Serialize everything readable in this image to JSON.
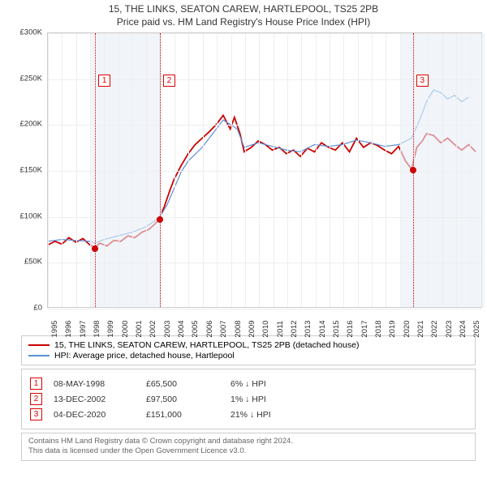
{
  "title_line1": "15, THE LINKS, SEATON CAREW, HARTLEPOOL, TS25 2PB",
  "title_line2": "Price paid vs. HM Land Registry's House Price Index (HPI)",
  "chart": {
    "type": "line",
    "x_range": [
      1995,
      2025.9
    ],
    "x_ticks": [
      1995,
      1996,
      1997,
      1998,
      1999,
      2000,
      2001,
      2002,
      2003,
      2004,
      2005,
      2006,
      2007,
      2008,
      2009,
      2010,
      2011,
      2012,
      2013,
      2014,
      2015,
      2016,
      2017,
      2018,
      2019,
      2020,
      2021,
      2022,
      2023,
      2024,
      2025
    ],
    "y_range": [
      0,
      300000
    ],
    "y_ticks": [
      0,
      50000,
      100000,
      150000,
      200000,
      250000,
      300000
    ],
    "y_tick_labels": [
      "£0",
      "£50K",
      "£100K",
      "£150K",
      "£200K",
      "£250K",
      "£300K"
    ],
    "grid_color": "#eeeeee",
    "background_color": "#ffffff",
    "shade_color": "#e8eef7",
    "shade_years": [
      1998,
      1999,
      2000,
      2001,
      2002,
      2020,
      2021,
      2022,
      2023,
      2024,
      2025
    ],
    "series": [
      {
        "name": "property",
        "label": "15, THE LINKS, SEATON CAREW, HARTLEPOOL, TS25 2PB (detached house)",
        "color": "#cc0000",
        "width": 1.8,
        "data": [
          [
            1995.0,
            68
          ],
          [
            1995.5,
            72
          ],
          [
            1996.0,
            69
          ],
          [
            1996.5,
            76
          ],
          [
            1997.0,
            71
          ],
          [
            1997.5,
            75
          ],
          [
            1998.0,
            68
          ],
          [
            1998.35,
            65.5
          ],
          [
            1998.7,
            70
          ],
          [
            1999.2,
            67
          ],
          [
            1999.7,
            73
          ],
          [
            2000.2,
            72
          ],
          [
            2000.7,
            78
          ],
          [
            2001.2,
            76
          ],
          [
            2001.7,
            82
          ],
          [
            2002.2,
            85
          ],
          [
            2002.7,
            92
          ],
          [
            2002.95,
            97.5
          ],
          [
            2003.3,
            110
          ],
          [
            2003.7,
            128
          ],
          [
            2004.0,
            140
          ],
          [
            2004.5,
            155
          ],
          [
            2005.0,
            168
          ],
          [
            2005.5,
            178
          ],
          [
            2006.0,
            185
          ],
          [
            2006.5,
            192
          ],
          [
            2007.0,
            200
          ],
          [
            2007.5,
            210
          ],
          [
            2008.0,
            195
          ],
          [
            2008.3,
            208
          ],
          [
            2008.7,
            190
          ],
          [
            2009.0,
            170
          ],
          [
            2009.5,
            175
          ],
          [
            2010.0,
            182
          ],
          [
            2010.5,
            178
          ],
          [
            2011.0,
            172
          ],
          [
            2011.5,
            175
          ],
          [
            2012.0,
            168
          ],
          [
            2012.5,
            172
          ],
          [
            2013.0,
            165
          ],
          [
            2013.5,
            174
          ],
          [
            2014.0,
            170
          ],
          [
            2014.5,
            180
          ],
          [
            2015.0,
            175
          ],
          [
            2015.5,
            172
          ],
          [
            2016.0,
            180
          ],
          [
            2016.5,
            170
          ],
          [
            2017.0,
            185
          ],
          [
            2017.5,
            175
          ],
          [
            2018.0,
            180
          ],
          [
            2018.5,
            177
          ],
          [
            2019.0,
            172
          ],
          [
            2019.5,
            168
          ],
          [
            2020.0,
            176
          ],
          [
            2020.5,
            160
          ],
          [
            2020.93,
            151
          ],
          [
            2021.3,
            175
          ],
          [
            2021.7,
            182
          ],
          [
            2022.0,
            190
          ],
          [
            2022.5,
            188
          ],
          [
            2023.0,
            180
          ],
          [
            2023.5,
            185
          ],
          [
            2024.0,
            178
          ],
          [
            2024.5,
            172
          ],
          [
            2025.0,
            178
          ],
          [
            2025.5,
            170
          ]
        ]
      },
      {
        "name": "hpi",
        "label": "HPI: Average price, detached house, Hartlepool",
        "color": "#5b8fd6",
        "width": 1.2,
        "data": [
          [
            1995.0,
            72
          ],
          [
            1996.0,
            74
          ],
          [
            1997.0,
            73
          ],
          [
            1998.0,
            72
          ],
          [
            1998.35,
            70
          ],
          [
            1999.0,
            74
          ],
          [
            2000.0,
            78
          ],
          [
            2001.0,
            82
          ],
          [
            2002.0,
            88
          ],
          [
            2002.95,
            98
          ],
          [
            2003.5,
            112
          ],
          [
            2004.0,
            130
          ],
          [
            2004.5,
            148
          ],
          [
            2005.0,
            160
          ],
          [
            2006.0,
            175
          ],
          [
            2007.0,
            195
          ],
          [
            2007.5,
            205
          ],
          [
            2008.0,
            200
          ],
          [
            2008.5,
            195
          ],
          [
            2009.0,
            175
          ],
          [
            2010.0,
            180
          ],
          [
            2011.0,
            176
          ],
          [
            2012.0,
            172
          ],
          [
            2013.0,
            170
          ],
          [
            2014.0,
            178
          ],
          [
            2015.0,
            176
          ],
          [
            2016.0,
            178
          ],
          [
            2017.0,
            183
          ],
          [
            2018.0,
            180
          ],
          [
            2019.0,
            176
          ],
          [
            2020.0,
            178
          ],
          [
            2020.93,
            185
          ],
          [
            2021.5,
            205
          ],
          [
            2022.0,
            225
          ],
          [
            2022.5,
            238
          ],
          [
            2023.0,
            235
          ],
          [
            2023.5,
            228
          ],
          [
            2024.0,
            232
          ],
          [
            2024.5,
            225
          ],
          [
            2025.0,
            230
          ]
        ]
      }
    ],
    "reference_lines": [
      {
        "num": "1",
        "x": 1998.35,
        "box_y": 255000
      },
      {
        "num": "2",
        "x": 2002.95,
        "box_y": 255000
      },
      {
        "num": "3",
        "x": 2020.93,
        "box_y": 255000
      }
    ],
    "markers": [
      {
        "x": 1998.35,
        "y": 65500,
        "color": "#cc0000"
      },
      {
        "x": 2002.95,
        "y": 97500,
        "color": "#cc0000"
      },
      {
        "x": 2020.93,
        "y": 151000,
        "color": "#cc0000"
      }
    ]
  },
  "legend": {
    "items": [
      {
        "color": "#cc0000",
        "label": "15, THE LINKS, SEATON CAREW, HARTLEPOOL, TS25 2PB (detached house)"
      },
      {
        "color": "#5b8fd6",
        "label": "HPI: Average price, detached house, Hartlepool"
      }
    ]
  },
  "transactions": [
    {
      "num": "1",
      "date": "08-MAY-1998",
      "price": "£65,500",
      "pct": "6%",
      "arrow": "↓",
      "suffix": "HPI"
    },
    {
      "num": "2",
      "date": "13-DEC-2002",
      "price": "£97,500",
      "pct": "1%",
      "arrow": "↓",
      "suffix": "HPI"
    },
    {
      "num": "3",
      "date": "04-DEC-2020",
      "price": "£151,000",
      "pct": "21%",
      "arrow": "↓",
      "suffix": "HPI"
    }
  ],
  "attribution": {
    "line1": "Contains HM Land Registry data © Crown copyright and database right 2024.",
    "line2": "This data is licensed under the Open Government Licence v3.0."
  }
}
